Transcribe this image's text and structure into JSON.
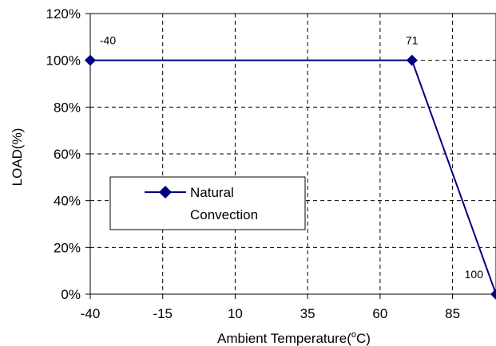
{
  "chart_data": {
    "type": "line",
    "xlabel": "Ambient Temperature(",
    "xlabel_degree": "o",
    "xlabel_unit": "C)",
    "ylabel": "LOAD(%)",
    "xlim": [
      -40,
      100
    ],
    "ylim": [
      0,
      120
    ],
    "x_ticks": [
      -40,
      -15,
      10,
      35,
      60,
      85
    ],
    "x_tick_labels": [
      "-40",
      "-15",
      "10",
      "35",
      "60",
      "85"
    ],
    "y_ticks": [
      0,
      20,
      40,
      60,
      80,
      100,
      120
    ],
    "y_tick_labels": [
      "0%",
      "20%",
      "40%",
      "60%",
      "80%",
      "100%",
      "120%"
    ],
    "grid": true,
    "legend_position": "center-left",
    "series": [
      {
        "name_line1": "Natural",
        "name_line2": "Convection",
        "color": "#000080",
        "marker": "diamond",
        "x": [
          -40,
          71,
          100
        ],
        "y": [
          100,
          100,
          0
        ]
      }
    ],
    "data_labels": [
      "-40",
      "71",
      "100"
    ]
  }
}
